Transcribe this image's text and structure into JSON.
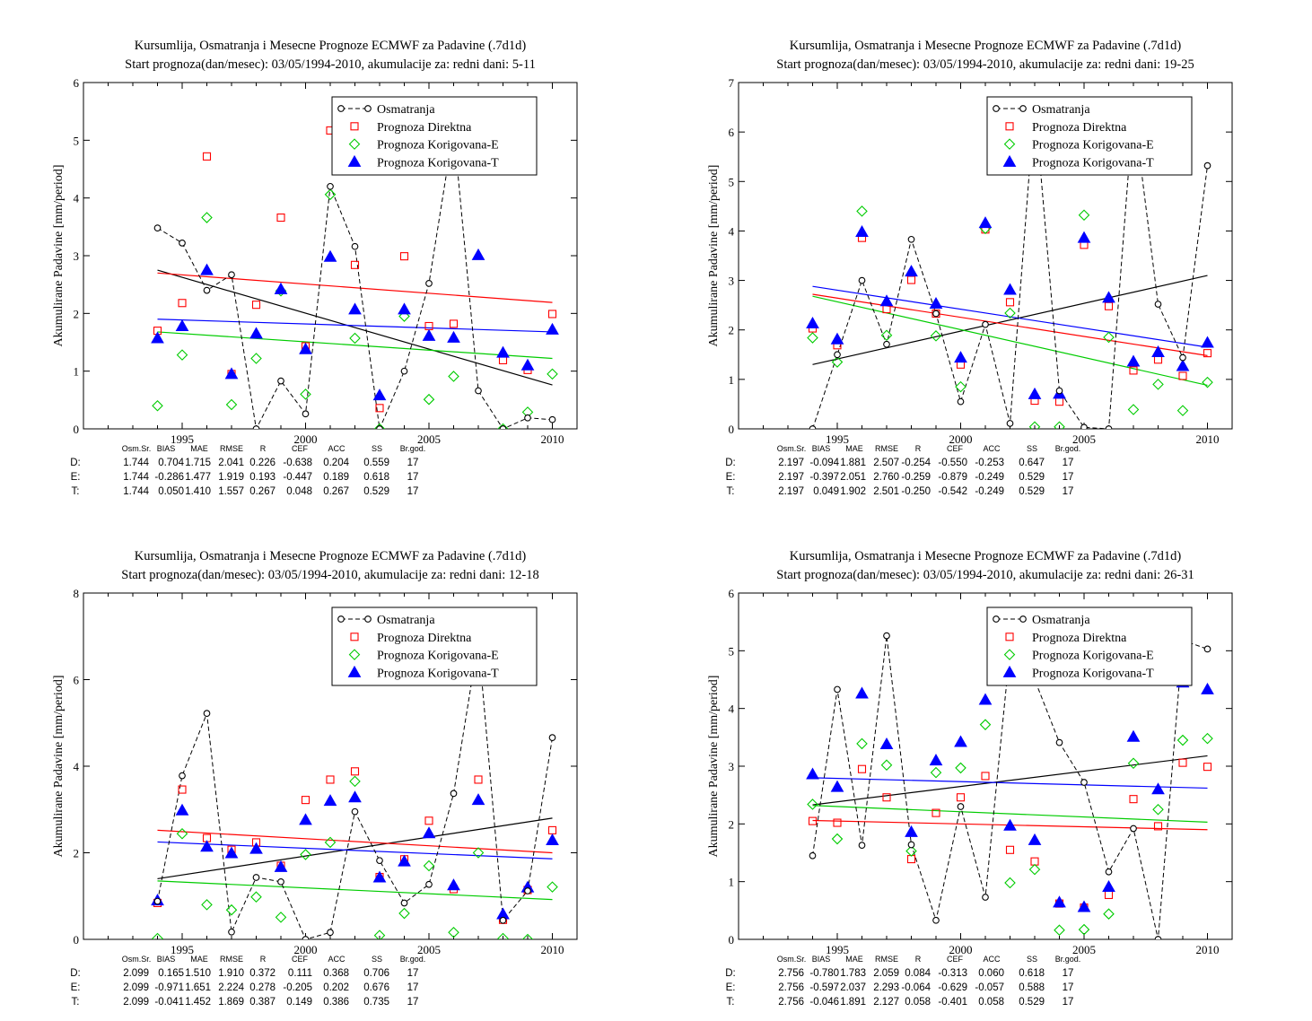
{
  "chart_data": [
    {
      "type": "scatter",
      "title": "Kursumlija, Osmatranja i Mesecne Prognoze ECMWF za Padavine (.7d1d)",
      "subtitle": "Start prognoza(dan/mesec): 03/05/1994-2010, akumulacije za: redni dani: 5-11",
      "ylabel": "Akumulirane Padavine [mm/period]",
      "xlim": [
        1991,
        2011
      ],
      "ylim": [
        0,
        6
      ],
      "xticks": [
        1995,
        2000,
        2005,
        2010
      ],
      "yticks": [
        0,
        1,
        2,
        3,
        4,
        5,
        6
      ],
      "x": [
        1994,
        1995,
        1996,
        1997,
        1998,
        1999,
        2000,
        2001,
        2002,
        2003,
        2004,
        2005,
        2006,
        2007,
        2008,
        2009,
        2010
      ],
      "series": [
        {
          "name": "Osmatranja",
          "color": "#000000",
          "marker": "circle",
          "line": "dashed",
          "values": [
            3.48,
            3.22,
            2.4,
            2.67,
            0.0,
            0.83,
            0.26,
            4.2,
            3.16,
            0.0,
            1.0,
            2.52,
            5.2,
            0.66,
            0.0,
            0.19,
            0.16
          ]
        },
        {
          "name": "Prognoza Direktna",
          "color": "#ff0000",
          "marker": "square",
          "values": [
            1.7,
            2.18,
            4.72,
            0.95,
            2.15,
            3.66,
            1.43,
            5.17,
            2.84,
            0.36,
            2.99,
            1.78,
            1.82,
            null,
            1.19,
            1.02,
            1.99
          ]
        },
        {
          "name": "Prognoza Korigovana-E",
          "color": "#00cc00",
          "marker": "diamond",
          "values": [
            0.4,
            1.28,
            3.66,
            0.42,
            1.22,
            2.39,
            0.6,
            4.06,
            1.57,
            0.0,
            1.95,
            0.51,
            0.91,
            null,
            0.0,
            0.29,
            0.95
          ]
        },
        {
          "name": "Prognoza Korigovana-T",
          "color": "#0000ff",
          "marker": "triangle",
          "values": [
            1.57,
            1.78,
            2.75,
            0.95,
            1.65,
            2.42,
            1.38,
            2.98,
            2.07,
            0.58,
            2.07,
            1.61,
            1.58,
            3.01,
            1.32,
            1.1,
            1.72
          ]
        }
      ],
      "trends": [
        {
          "color": "#000000",
          "y_start": 2.75,
          "y_end": 0.76
        },
        {
          "color": "#ff0000",
          "y_start": 2.7,
          "y_end": 2.19
        },
        {
          "color": "#0000ff",
          "y_start": 1.9,
          "y_end": 1.68
        },
        {
          "color": "#00cc00",
          "y_start": 1.68,
          "y_end": 1.22
        }
      ],
      "stats": {
        "headers": [
          "Osm.Sr.",
          "BIAS",
          "MAE",
          "RMSE",
          "R",
          "CEF",
          "ACC",
          "SS",
          "Br.god."
        ],
        "rows": [
          {
            "label": "D:",
            "color": "#ff0000",
            "values": [
              "1.744",
              "0.704",
              "1.715",
              "2.041",
              "0.226",
              "-0.638",
              "0.204",
              "0.559",
              "17"
            ]
          },
          {
            "label": "E:",
            "color": "#00cc00",
            "values": [
              "1.744",
              "-0.286",
              "1.477",
              "1.919",
              "0.193",
              "-0.447",
              "0.189",
              "0.618",
              "17"
            ]
          },
          {
            "label": "T:",
            "color": "#0000ff",
            "values": [
              "1.744",
              "0.050",
              "1.410",
              "1.557",
              "0.267",
              "0.048",
              "0.267",
              "0.529",
              "17"
            ]
          }
        ]
      }
    },
    {
      "type": "scatter",
      "title": "Kursumlija, Osmatranja i Mesecne Prognoze ECMWF za Padavine (.7d1d)",
      "subtitle": "Start prognoza(dan/mesec): 03/05/1994-2010, akumulacije za: redni dani: 19-25",
      "ylabel": "Akumulirane Padavine [mm/period]",
      "xlim": [
        1991,
        2011
      ],
      "ylim": [
        0,
        7
      ],
      "xticks": [
        1995,
        2000,
        2005,
        2010
      ],
      "yticks": [
        0,
        1,
        2,
        3,
        4,
        5,
        6,
        7
      ],
      "x": [
        1994,
        1995,
        1996,
        1997,
        1998,
        1999,
        2000,
        2001,
        2002,
        2003,
        2004,
        2005,
        2006,
        2007,
        2008,
        2009,
        2010
      ],
      "series": [
        {
          "name": "Osmatranja",
          "color": "#000000",
          "marker": "circle",
          "line": "dashed",
          "values": [
            0.0,
            1.5,
            3.0,
            1.71,
            3.83,
            2.33,
            0.55,
            2.11,
            0.11,
            6.6,
            0.77,
            0.03,
            0.0,
            6.5,
            2.52,
            1.44,
            5.32
          ]
        },
        {
          "name": "Prognoza Direktna",
          "color": "#ff0000",
          "marker": "square",
          "values": [
            2.03,
            1.69,
            3.86,
            2.42,
            3.01,
            2.33,
            1.3,
            4.03,
            2.56,
            0.57,
            0.55,
            3.72,
            2.48,
            1.18,
            1.4,
            1.07,
            1.53
          ]
        },
        {
          "name": "Prognoza Korigovana-E",
          "color": "#00cc00",
          "marker": "diamond",
          "values": [
            1.84,
            1.35,
            4.4,
            1.89,
            null,
            1.88,
            0.85,
            4.05,
            2.34,
            0.04,
            0.04,
            4.32,
            1.85,
            0.39,
            0.9,
            0.37,
            0.94
          ]
        },
        {
          "name": "Prognoza Korigovana-T",
          "color": "#0000ff",
          "marker": "triangle",
          "values": [
            2.13,
            1.81,
            3.98,
            2.58,
            3.18,
            2.53,
            1.44,
            4.16,
            2.81,
            0.7,
            0.71,
            3.86,
            2.65,
            1.36,
            1.55,
            1.27,
            1.74
          ]
        }
      ],
      "trends": [
        {
          "color": "#000000",
          "y_start": 1.3,
          "y_end": 3.1
        },
        {
          "color": "#0000ff",
          "y_start": 2.88,
          "y_end": 1.65
        },
        {
          "color": "#ff0000",
          "y_start": 2.72,
          "y_end": 1.48
        },
        {
          "color": "#00cc00",
          "y_start": 2.68,
          "y_end": 0.88
        }
      ],
      "stats": {
        "headers": [
          "Osm.Sr.",
          "BIAS",
          "MAE",
          "RMSE",
          "R",
          "CEF",
          "ACC",
          "SS",
          "Br.god."
        ],
        "rows": [
          {
            "label": "D:",
            "color": "#ff0000",
            "values": [
              "2.197",
              "-0.094",
              "1.881",
              "2.507",
              "-0.254",
              "-0.550",
              "-0.253",
              "0.647",
              "17"
            ]
          },
          {
            "label": "E:",
            "color": "#00cc00",
            "values": [
              "2.197",
              "-0.397",
              "2.051",
              "2.760",
              "-0.259",
              "-0.879",
              "-0.249",
              "0.529",
              "17"
            ]
          },
          {
            "label": "T:",
            "color": "#0000ff",
            "values": [
              "2.197",
              "0.049",
              "1.902",
              "2.501",
              "-0.250",
              "-0.542",
              "-0.249",
              "0.529",
              "17"
            ]
          }
        ]
      }
    },
    {
      "type": "scatter",
      "title": "Kursumlija, Osmatranja i Mesecne Prognoze ECMWF za Padavine (.7d1d)",
      "subtitle": "Start prognoza(dan/mesec): 03/05/1994-2010, akumulacije za: redni dani: 12-18",
      "ylabel": "Akumulirane Padavine [mm/period]",
      "xlim": [
        1991,
        2011
      ],
      "ylim": [
        0,
        8
      ],
      "xticks": [
        1995,
        2000,
        2005,
        2010
      ],
      "yticks": [
        0,
        2,
        4,
        6,
        8
      ],
      "x": [
        1994,
        1995,
        1996,
        1997,
        1998,
        1999,
        2000,
        2001,
        2002,
        2003,
        2004,
        2005,
        2006,
        2007,
        2008,
        2009,
        2010
      ],
      "series": [
        {
          "name": "Osmatranja",
          "color": "#000000",
          "marker": "circle",
          "line": "dashed",
          "values": [
            0.88,
            3.78,
            5.22,
            0.17,
            1.43,
            1.33,
            0.0,
            0.16,
            2.95,
            1.82,
            0.84,
            1.27,
            3.37,
            6.9,
            0.44,
            1.12,
            4.66
          ]
        },
        {
          "name": "Prognoza Direktna",
          "color": "#ff0000",
          "marker": "square",
          "values": [
            0.84,
            3.46,
            2.34,
            2.07,
            2.24,
            1.7,
            3.22,
            3.69,
            3.88,
            1.44,
            1.85,
            2.74,
            1.16,
            3.69,
            0.45,
            1.14,
            2.52
          ]
        },
        {
          "name": "Prognoza Korigovana-E",
          "color": "#00cc00",
          "marker": "diamond",
          "values": [
            0.02,
            2.44,
            0.8,
            0.68,
            0.98,
            0.51,
            1.96,
            2.24,
            3.65,
            0.09,
            0.6,
            1.7,
            0.16,
            2.0,
            0.02,
            0.0,
            1.21
          ]
        },
        {
          "name": "Prognoza Korigovana-T",
          "color": "#0000ff",
          "marker": "triangle",
          "values": [
            0.9,
            2.98,
            2.14,
            1.99,
            2.09,
            1.67,
            2.76,
            3.2,
            3.28,
            1.43,
            1.8,
            2.45,
            1.25,
            3.22,
            0.58,
            1.2,
            2.29
          ]
        }
      ],
      "trends": [
        {
          "color": "#000000",
          "y_start": 1.4,
          "y_end": 2.8
        },
        {
          "color": "#ff0000",
          "y_start": 2.52,
          "y_end": 2.0
        },
        {
          "color": "#0000ff",
          "y_start": 2.25,
          "y_end": 1.86
        },
        {
          "color": "#00cc00",
          "y_start": 1.35,
          "y_end": 0.92
        }
      ],
      "stats": {
        "headers": [
          "Osm.Sr.",
          "BIAS",
          "MAE",
          "RMSE",
          "R",
          "CEF",
          "ACC",
          "SS",
          "Br.god."
        ],
        "rows": [
          {
            "label": "D:",
            "color": "#ff0000",
            "values": [
              "2.099",
              "0.165",
              "1.510",
              "1.910",
              "0.372",
              "0.111",
              "0.368",
              "0.706",
              "17"
            ]
          },
          {
            "label": "E:",
            "color": "#00cc00",
            "values": [
              "2.099",
              "-0.971",
              "1.651",
              "2.224",
              "0.278",
              "-0.205",
              "0.202",
              "0.676",
              "17"
            ]
          },
          {
            "label": "T:",
            "color": "#0000ff",
            "values": [
              "2.099",
              "-0.041",
              "1.452",
              "1.869",
              "0.387",
              "0.149",
              "0.386",
              "0.735",
              "17"
            ]
          }
        ]
      }
    },
    {
      "type": "scatter",
      "title": "Kursumlija, Osmatranja i Mesecne Prognoze ECMWF za Padavine (.7d1d)",
      "subtitle": "Start prognoza(dan/mesec): 03/05/1994-2010, akumulacije za: redni dani: 26-31",
      "ylabel": "Akumulirane Padavine [mm/period]",
      "xlim": [
        1991,
        2011
      ],
      "ylim": [
        0,
        6
      ],
      "xticks": [
        1995,
        2000,
        2005,
        2010
      ],
      "yticks": [
        0,
        1,
        2,
        3,
        4,
        5,
        6
      ],
      "x": [
        1994,
        1995,
        1996,
        1997,
        1998,
        1999,
        2000,
        2001,
        2002,
        2003,
        2004,
        2005,
        2006,
        2007,
        2008,
        2009,
        2010
      ],
      "series": [
        {
          "name": "Osmatranja",
          "color": "#000000",
          "marker": "circle",
          "line": "dashed",
          "values": [
            1.45,
            4.33,
            1.63,
            5.26,
            1.64,
            0.33,
            2.3,
            0.73,
            5.03,
            4.5,
            3.41,
            2.72,
            1.17,
            1.92,
            0.0,
            5.18,
            5.03
          ]
        },
        {
          "name": "Prognoza Direktna",
          "color": "#ff0000",
          "marker": "square",
          "values": [
            2.05,
            2.02,
            2.95,
            2.46,
            1.39,
            2.19,
            2.46,
            2.83,
            1.55,
            1.35,
            0.62,
            0.55,
            0.77,
            2.43,
            1.96,
            3.06,
            2.99
          ]
        },
        {
          "name": "Prognoza Korigovana-E",
          "color": "#00cc00",
          "marker": "diamond",
          "values": [
            2.34,
            1.74,
            3.39,
            3.02,
            1.53,
            2.89,
            2.97,
            3.72,
            0.98,
            1.21,
            0.16,
            0.17,
            0.44,
            3.05,
            2.25,
            3.45,
            3.48
          ]
        },
        {
          "name": "Prognoza Korigovana-T",
          "color": "#0000ff",
          "marker": "triangle",
          "values": [
            2.86,
            2.64,
            4.26,
            3.38,
            1.86,
            3.1,
            3.42,
            4.15,
            1.97,
            1.72,
            0.64,
            0.56,
            0.91,
            3.51,
            2.6,
            4.45,
            4.33
          ]
        }
      ],
      "trends": [
        {
          "color": "#000000",
          "y_start": 2.33,
          "y_end": 3.18
        },
        {
          "color": "#0000ff",
          "y_start": 2.8,
          "y_end": 2.62
        },
        {
          "color": "#00cc00",
          "y_start": 2.32,
          "y_end": 2.03
        },
        {
          "color": "#ff0000",
          "y_start": 2.06,
          "y_end": 1.9
        }
      ],
      "stats": {
        "headers": [
          "Osm.Sr.",
          "BIAS",
          "MAE",
          "RMSE",
          "R",
          "CEF",
          "ACC",
          "SS",
          "Br.god."
        ],
        "rows": [
          {
            "label": "D:",
            "color": "#ff0000",
            "values": [
              "2.756",
              "-0.780",
              "1.783",
              "2.059",
              "0.084",
              "-0.313",
              "0.060",
              "0.618",
              "17"
            ]
          },
          {
            "label": "E:",
            "color": "#00cc00",
            "values": [
              "2.756",
              "-0.597",
              "2.037",
              "2.293",
              "-0.064",
              "-0.629",
              "-0.057",
              "0.588",
              "17"
            ]
          },
          {
            "label": "T:",
            "color": "#0000ff",
            "values": [
              "2.756",
              "-0.046",
              "1.891",
              "2.127",
              "0.058",
              "-0.401",
              "0.058",
              "0.529",
              "17"
            ]
          }
        ]
      }
    }
  ]
}
